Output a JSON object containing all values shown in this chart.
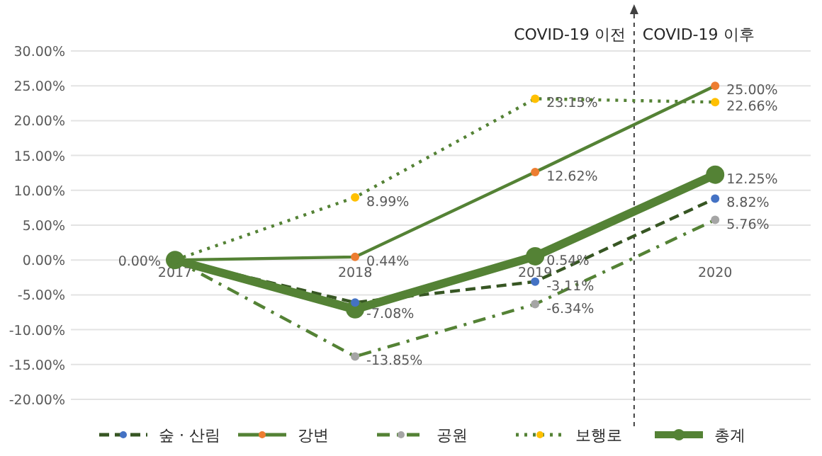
{
  "chart_data": {
    "type": "line",
    "categories": [
      "2017",
      "2018",
      "2019",
      "2020"
    ],
    "ylim": [
      -20,
      30
    ],
    "yticks": [
      {
        "value": -20,
        "label": "-20.00%"
      },
      {
        "value": -15,
        "label": "-15.00%"
      },
      {
        "value": -10,
        "label": "-10.00%"
      },
      {
        "value": -5,
        "label": "-5.00%"
      },
      {
        "value": 0,
        "label": "0.00%"
      },
      {
        "value": 5,
        "label": "5.00%"
      },
      {
        "value": 10,
        "label": "10.00%"
      },
      {
        "value": 15,
        "label": "15.00%"
      },
      {
        "value": 20,
        "label": "20.00%"
      },
      {
        "value": 25,
        "label": "25.00%"
      },
      {
        "value": 30,
        "label": "30.00%"
      }
    ],
    "grid": "y",
    "legend": "bottom",
    "marker": "circle",
    "annotations": [
      "COVID-19 이전",
      "COVID-19 이후"
    ],
    "series": [
      {
        "name": "숲 · 산림",
        "color": "#375623",
        "colors": [
          "#548235",
          "#4472c4",
          "#4472c4",
          "#4472c4"
        ],
        "line_style": "dashed",
        "values": [
          0,
          -6.1,
          -3.11,
          8.82
        ],
        "value_labels": [
          null,
          null,
          "-3.11%",
          "8.82%"
        ]
      },
      {
        "name": "강변",
        "color": "#548235",
        "colors": [
          "#548235",
          "#ed7d31",
          "#ed7d31",
          "#ed7d31"
        ],
        "line_style": "solid",
        "values": [
          0,
          0.44,
          12.62,
          25.0
        ],
        "value_labels": [
          null,
          "0.44%",
          "12.62%",
          "25.00%"
        ]
      },
      {
        "name": "공원",
        "color": "#548235",
        "colors": [
          "#548235",
          "#a5a5a5",
          "#a5a5a5",
          "#a5a5a5"
        ],
        "line_style": "dashdot",
        "values": [
          0,
          -13.85,
          -6.34,
          5.76
        ],
        "value_labels": [
          null,
          "-13.85%",
          "-6.34%",
          "5.76%"
        ]
      },
      {
        "name": "보행로",
        "color": "#548235",
        "colors": [
          "#548235",
          "#ffc000",
          "#ffc000",
          "#ffc000"
        ],
        "line_style": "dotted",
        "values": [
          0,
          8.99,
          23.15,
          22.66
        ],
        "value_labels": [
          null,
          "8.99%",
          "23.15%",
          "22.66%"
        ]
      },
      {
        "name": "총계",
        "color": "#548235",
        "colors": [
          "#548235",
          "#548235",
          "#548235",
          "#548235"
        ],
        "line_style": "solid",
        "values": [
          0,
          -7.08,
          0.54,
          12.25
        ],
        "value_labels": [
          "0.00%",
          "-7.08%",
          "0.54%",
          "12.25%"
        ]
      }
    ]
  }
}
